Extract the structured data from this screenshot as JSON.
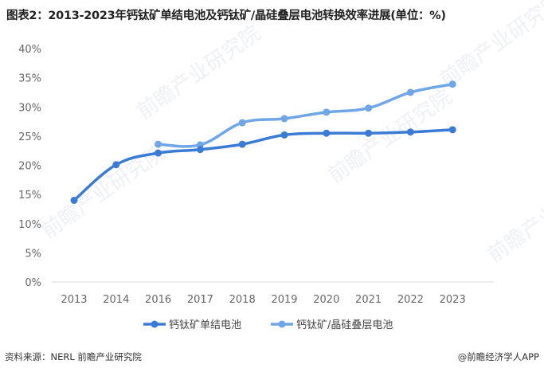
{
  "title": "图表2：2013-2023年钙钛矿单结电池及钙钛矿/晶硅叠层电池转换效率进展(单位：%)",
  "source": "资料来源：NERL 前瞻产业研究院",
  "brand": "@前瞻经济学人APP",
  "watermark": "前瞻产业研究院",
  "chart_data": {
    "type": "line",
    "categories": [
      "2013",
      "2014",
      "2016",
      "2017",
      "2018",
      "2019",
      "2020",
      "2021",
      "2022",
      "2023"
    ],
    "ylim": [
      0,
      40
    ],
    "yticks": [
      "0%",
      "5%",
      "10%",
      "15%",
      "20%",
      "25%",
      "30%",
      "35%",
      "40%"
    ],
    "grid": false,
    "legend": "bottom",
    "series": [
      {
        "name": "钙钛矿单结电池",
        "color": "#3a7bd5",
        "values": [
          14.0,
          20.1,
          22.1,
          22.7,
          23.6,
          25.2,
          25.5,
          25.5,
          25.7,
          26.1
        ]
      },
      {
        "name": "钙钛矿/晶硅叠层电池",
        "color": "#6ea6e8",
        "values": [
          null,
          null,
          23.6,
          23.5,
          27.3,
          28.0,
          29.1,
          29.8,
          32.5,
          33.9
        ]
      }
    ]
  }
}
